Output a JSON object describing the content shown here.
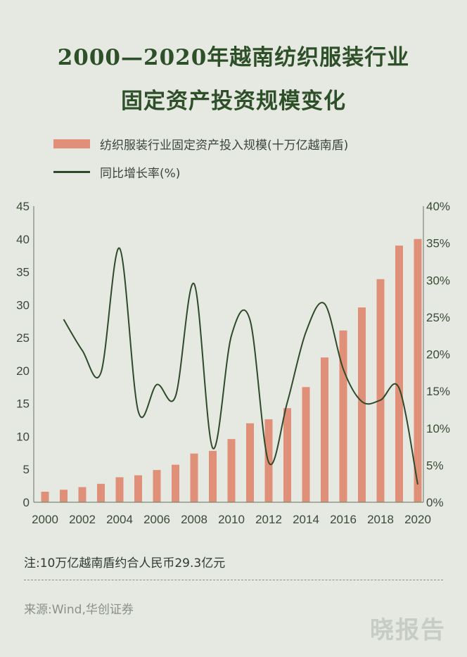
{
  "title": {
    "line1": "2000—2020年越南纺织服装行业",
    "line2": "固定资产投资规模变化"
  },
  "legend": {
    "bar_label": "纺织服装行业固定资产投入规模(十万亿越南盾)",
    "line_label": "同比增长率(%)"
  },
  "colors": {
    "bar": "#e09078",
    "line": "#2e4a2a",
    "title": "#2e5028"
  },
  "chart_data": {
    "type": "bar+line",
    "title": "2000—2020年越南纺织服装行业固定资产投资规模变化",
    "x": [
      2000,
      2001,
      2002,
      2003,
      2004,
      2005,
      2006,
      2007,
      2008,
      2009,
      2010,
      2011,
      2012,
      2013,
      2014,
      2015,
      2016,
      2017,
      2018,
      2019,
      2020
    ],
    "x_tick_labels": [
      "2000",
      "2002",
      "2004",
      "2006",
      "2008",
      "2010",
      "2012",
      "2014",
      "2016",
      "2018",
      "2020"
    ],
    "series": [
      {
        "name": "纺织服装行业固定资产投入规模(十万亿越南盾)",
        "type": "bar",
        "axis": "left",
        "values": [
          1.6,
          1.9,
          2.3,
          2.8,
          3.8,
          4.1,
          4.9,
          5.7,
          7.4,
          7.8,
          9.6,
          12.0,
          12.6,
          14.3,
          17.5,
          22.0,
          26.1,
          29.6,
          33.9,
          39.0,
          40.0
        ]
      },
      {
        "name": "同比增长率(%)",
        "type": "line",
        "axis": "right",
        "x": [
          2001,
          2002,
          2003,
          2004,
          2005,
          2006,
          2007,
          2008,
          2009,
          2010,
          2011,
          2012,
          2013,
          2014,
          2015,
          2016,
          2017,
          2018,
          2019,
          2020
        ],
        "values": [
          24.7,
          20.5,
          17.5,
          34.3,
          12.3,
          15.9,
          14.3,
          29.5,
          7.3,
          22.5,
          24.6,
          5.4,
          13.5,
          23.0,
          26.8,
          18.0,
          13.6,
          13.8,
          15.4,
          2.4
        ]
      }
    ],
    "y_left": {
      "min": 0,
      "max": 45,
      "ticks": [
        0,
        5,
        10,
        15,
        20,
        25,
        30,
        35,
        40,
        45
      ]
    },
    "y_right": {
      "min": 0,
      "max": 40,
      "ticks": [
        "0%",
        "5%",
        "10%",
        "15%",
        "20%",
        "25%",
        "30%",
        "35%",
        "40%"
      ]
    },
    "grid": false
  },
  "note": "注:10万亿越南盾约合人民币29.3亿元",
  "source": "来源:Wind,华创证券",
  "brand": "晓报告"
}
